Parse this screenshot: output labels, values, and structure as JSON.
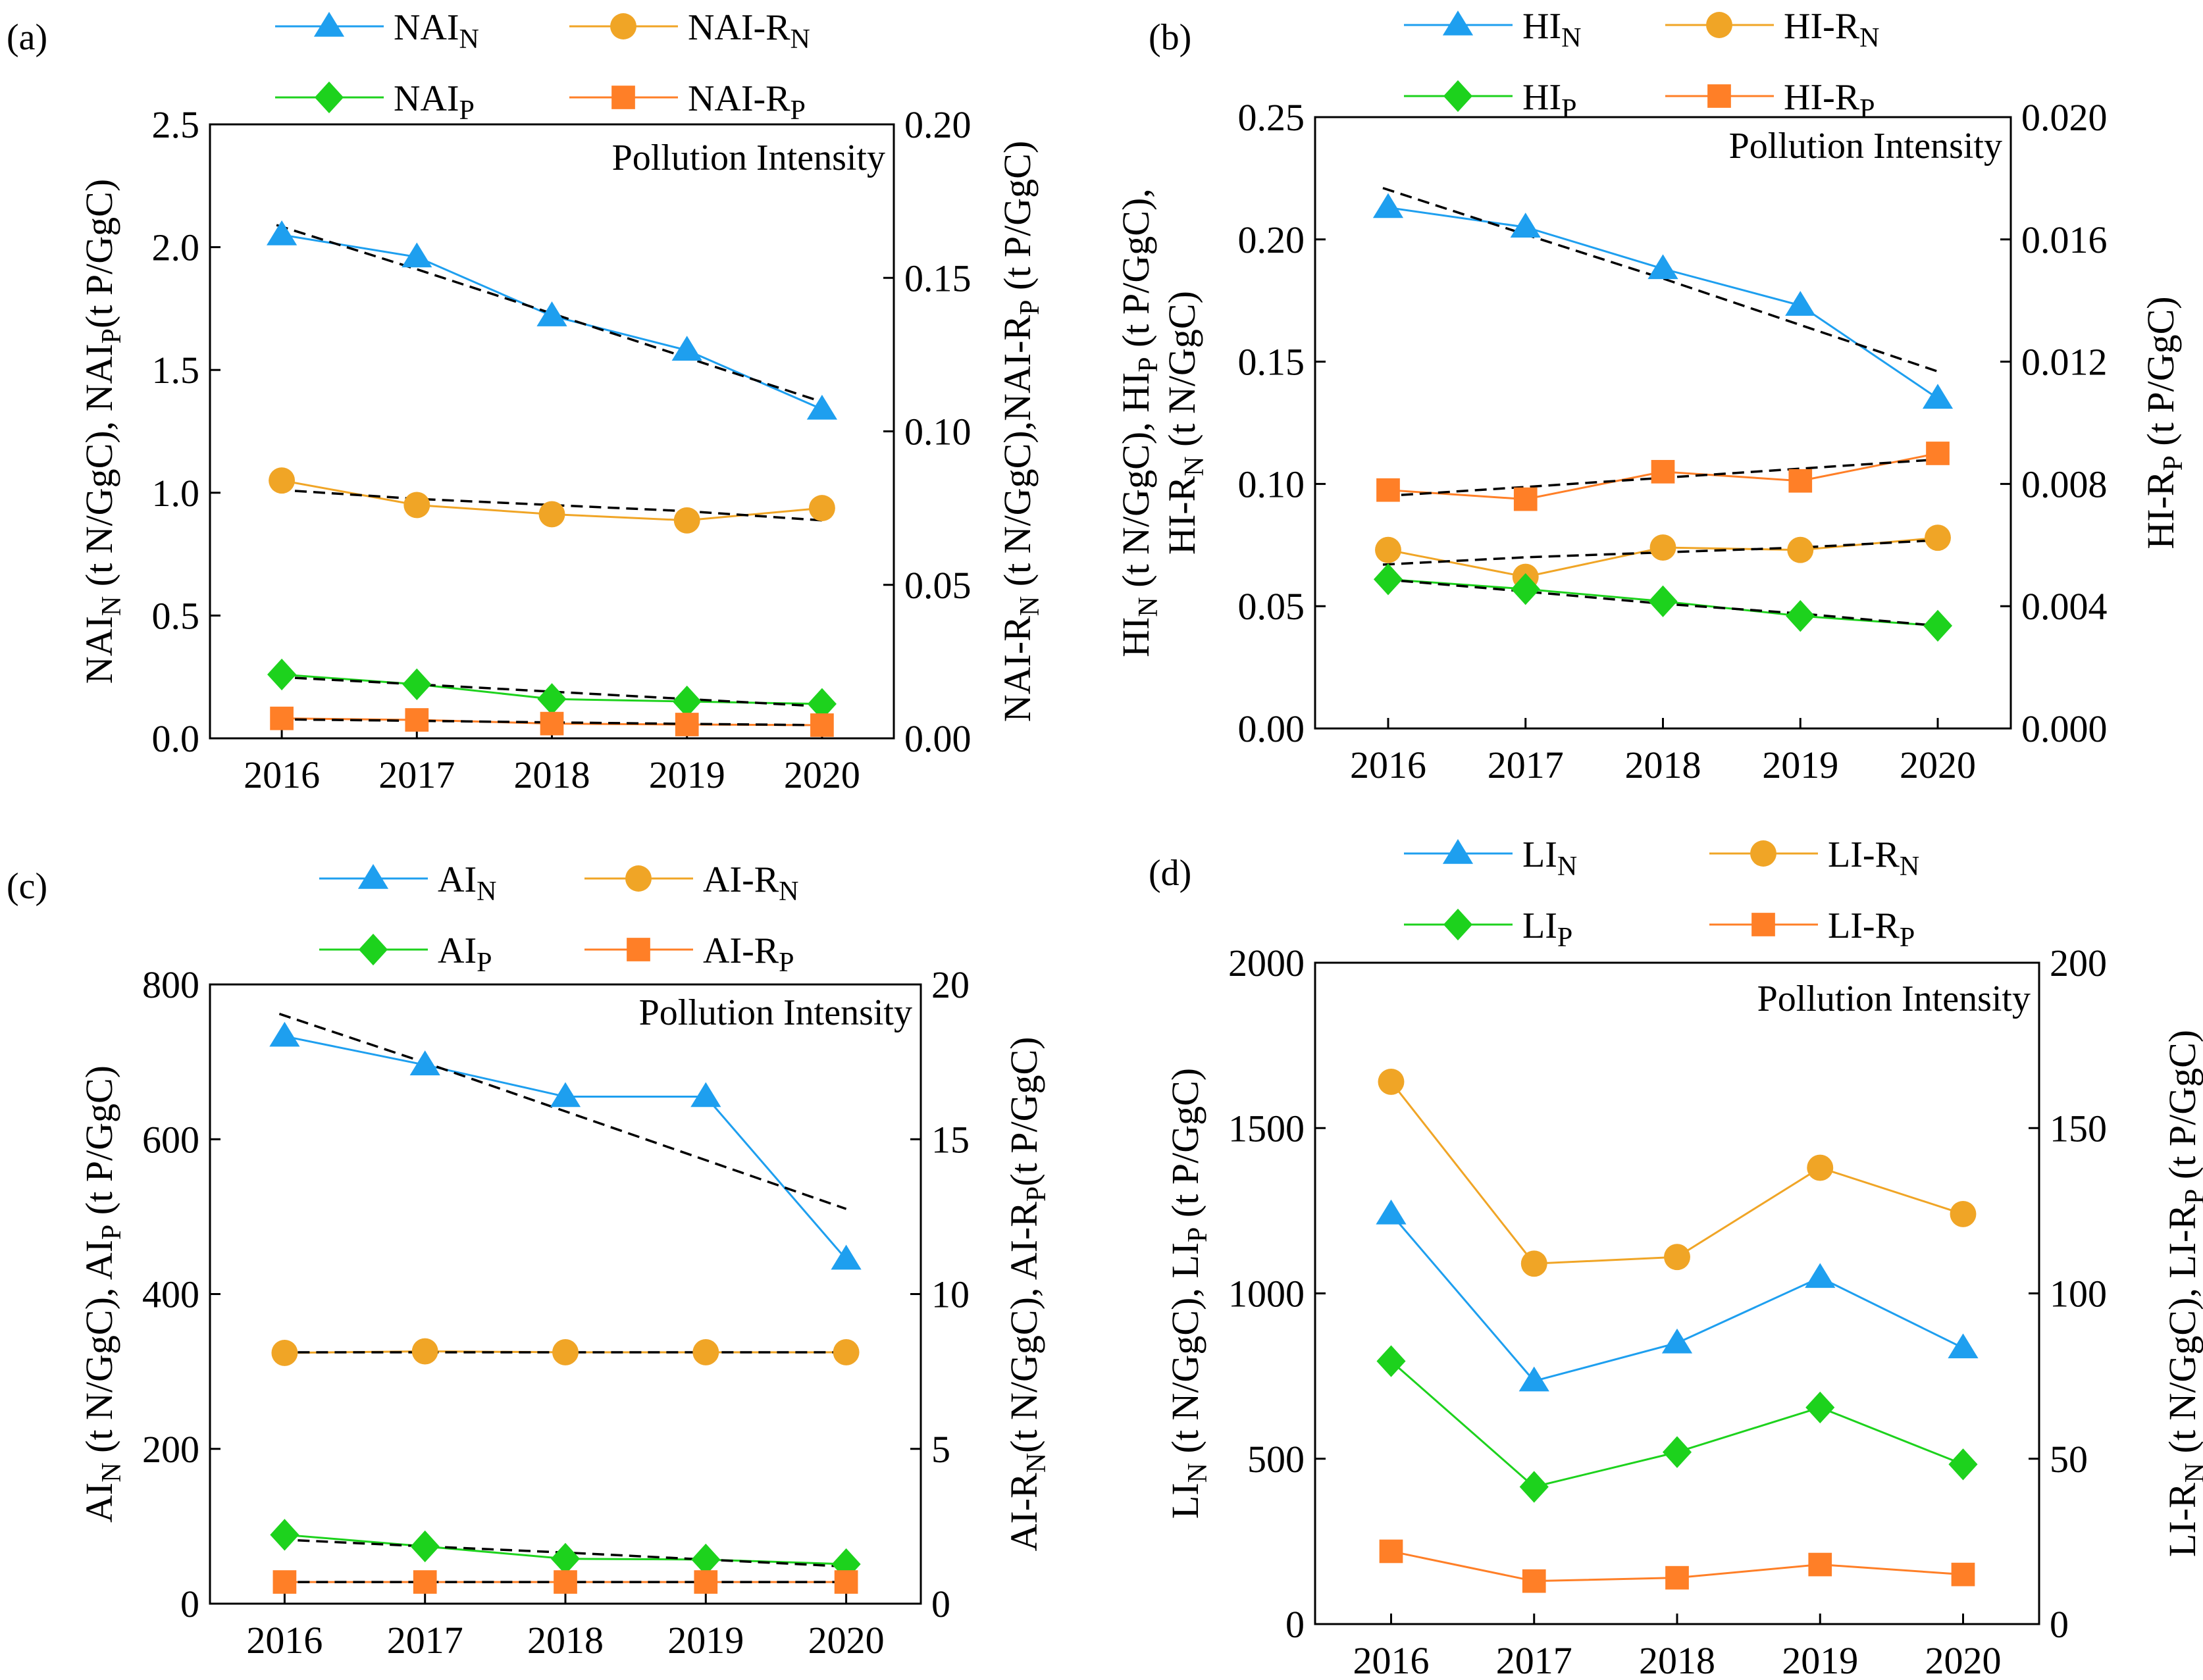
{
  "colors": {
    "blue": "#1E9FEF",
    "yellow": "#F0A526",
    "green": "#1DD21D",
    "orange": "#FF7F27",
    "trend": "#000000"
  },
  "chart_data": [
    {
      "panel": "(a)",
      "type": "line",
      "annotation": "Pollution Intensity",
      "categories": [
        "2016",
        "2017",
        "2018",
        "2019",
        "2020"
      ],
      "y_left": {
        "label": "NAI_N (t N/GgC), NAI_P(t P/GgC)",
        "ylim": [
          0,
          2.5
        ],
        "ticks": [
          "0.0",
          "0.5",
          "1.0",
          "1.5",
          "2.0",
          "2.5"
        ]
      },
      "y_right": {
        "label": "NAI-R_N (t N/GgC),NAI-R_P (t P/GgC)",
        "ylim": [
          0,
          0.2
        ],
        "ticks": [
          "0.00",
          "0.05",
          "0.10",
          "0.15",
          "0.20"
        ]
      },
      "series": [
        {
          "name": "NAI_N",
          "base": "NAI",
          "sub": "N",
          "axis": "left",
          "color": "blue",
          "marker": "triangle",
          "values": [
            2.05,
            1.96,
            1.72,
            1.58,
            1.34
          ],
          "trend": [
            2.09,
            1.91,
            1.73,
            1.55,
            1.37
          ]
        },
        {
          "name": "NAI-R_N",
          "base": "NAI-R",
          "sub": "N",
          "axis": "right",
          "color": "yellow",
          "marker": "circle",
          "values": [
            0.084,
            0.076,
            0.073,
            0.071,
            0.075
          ],
          "trend": [
            0.081,
            0.078,
            0.076,
            0.074,
            0.071
          ]
        },
        {
          "name": "NAI_P",
          "base": "NAI",
          "sub": "P",
          "axis": "left",
          "color": "green",
          "marker": "diamond",
          "values": [
            0.26,
            0.22,
            0.16,
            0.15,
            0.14
          ],
          "trend": [
            0.25,
            0.22,
            0.19,
            0.16,
            0.13
          ]
        },
        {
          "name": "NAI-R_P",
          "base": "NAI-R",
          "sub": "P",
          "axis": "right",
          "color": "orange",
          "marker": "square",
          "values": [
            0.0065,
            0.006,
            0.0048,
            0.0045,
            0.0043
          ],
          "trend": [
            0.0062,
            0.0057,
            0.0052,
            0.0047,
            0.0043
          ]
        }
      ]
    },
    {
      "panel": "(b)",
      "type": "line",
      "annotation": "Pollution Intensity",
      "categories": [
        "2016",
        "2017",
        "2018",
        "2019",
        "2020"
      ],
      "y_left": {
        "label": "HI_N (t N/GgC), HI_P (t P/GgC), HI-R_N (t N/GgC)",
        "ylim": [
          0,
          0.25
        ],
        "ticks": [
          "0.00",
          "0.05",
          "0.10",
          "0.15",
          "0.20",
          "0.25"
        ]
      },
      "y_right": {
        "label": "HI-R_P (t P/GgC)",
        "ylim": [
          0,
          0.02
        ],
        "ticks": [
          "0.000",
          "0.004",
          "0.008",
          "0.012",
          "0.016",
          "0.020"
        ]
      },
      "series": [
        {
          "name": "HI_N",
          "base": "HI",
          "sub": "N",
          "axis": "left",
          "color": "blue",
          "marker": "triangle",
          "values": [
            0.213,
            0.205,
            0.188,
            0.173,
            0.135
          ],
          "trend": [
            0.221,
            0.202,
            0.184,
            0.165,
            0.146
          ]
        },
        {
          "name": "HI-R_N",
          "base": "HI-R",
          "sub": "N",
          "axis": "left",
          "color": "yellow",
          "marker": "circle",
          "values": [
            0.073,
            0.062,
            0.074,
            0.073,
            0.078
          ],
          "trend": [
            0.067,
            0.07,
            0.072,
            0.074,
            0.077
          ]
        },
        {
          "name": "HI_P",
          "base": "HI",
          "sub": "P",
          "axis": "left",
          "color": "green",
          "marker": "diamond",
          "values": [
            0.061,
            0.057,
            0.052,
            0.046,
            0.042
          ],
          "trend": [
            0.061,
            0.056,
            0.051,
            0.047,
            0.042
          ]
        },
        {
          "name": "HI-R_P",
          "base": "HI-R",
          "sub": "P",
          "axis": "right",
          "color": "orange",
          "marker": "square",
          "values": [
            0.0078,
            0.0075,
            0.0084,
            0.0081,
            0.009
          ],
          "trend": [
            0.0076,
            0.0079,
            0.0082,
            0.0085,
            0.0088
          ]
        }
      ]
    },
    {
      "panel": "(c)",
      "type": "line",
      "annotation": "Pollution Intensity",
      "categories": [
        "2016",
        "2017",
        "2018",
        "2019",
        "2020"
      ],
      "y_left": {
        "label": "AI_N (t N/GgC), AI_P (t P/GgC)",
        "ylim": [
          0,
          800
        ],
        "ticks": [
          "0",
          "200",
          "400",
          "600",
          "800"
        ]
      },
      "y_right": {
        "label": "AI-R_N(t N/GgC), AI-R_P(t P/GgC)",
        "ylim": [
          0,
          20
        ],
        "ticks": [
          "0",
          "5",
          "10",
          "15",
          "20"
        ]
      },
      "series": [
        {
          "name": "AI_N",
          "base": "AI",
          "sub": "N",
          "axis": "left",
          "color": "blue",
          "marker": "triangle",
          "values": [
            733,
            696,
            655,
            655,
            445
          ],
          "trend": [
            762,
            699,
            636,
            573,
            510
          ]
        },
        {
          "name": "AI-R_N",
          "base": "AI-R",
          "sub": "N",
          "axis": "right",
          "color": "yellow",
          "marker": "circle",
          "values": [
            8.1,
            8.15,
            8.12,
            8.12,
            8.12
          ],
          "trend": [
            8.12,
            8.12,
            8.12,
            8.12,
            8.12
          ]
        },
        {
          "name": "AI_P",
          "base": "AI",
          "sub": "P",
          "axis": "left",
          "color": "green",
          "marker": "diamond",
          "values": [
            89,
            74,
            58,
            57,
            51
          ],
          "trend": [
            83,
            74,
            66,
            57,
            48
          ]
        },
        {
          "name": "AI-R_P",
          "base": "AI-R",
          "sub": "P",
          "axis": "right",
          "color": "orange",
          "marker": "square",
          "values": [
            0.7,
            0.7,
            0.7,
            0.7,
            0.7
          ],
          "trend": [
            0.7,
            0.7,
            0.7,
            0.7,
            0.7
          ]
        }
      ]
    },
    {
      "panel": "(d)",
      "type": "line",
      "annotation": "Pollution Intensity",
      "categories": [
        "2016",
        "2017",
        "2018",
        "2019",
        "2020"
      ],
      "y_left": {
        "label": "LI_N (t N/GgC), LI_P (t P/GgC)",
        "ylim": [
          0,
          2000
        ],
        "ticks": [
          "0",
          "500",
          "1000",
          "1500",
          "2000"
        ]
      },
      "y_right": {
        "label": "LI-R_N (t N/GgC), LI-R_P (t P/GgC)",
        "ylim": [
          0,
          200
        ],
        "ticks": [
          "0",
          "50",
          "100",
          "150",
          "200"
        ]
      },
      "series": [
        {
          "name": "LI_N",
          "base": "LI",
          "sub": "N",
          "axis": "left",
          "color": "blue",
          "marker": "triangle",
          "values": [
            1240,
            735,
            850,
            1048,
            835
          ],
          "trend": null
        },
        {
          "name": "LI-R_N",
          "base": "LI-R",
          "sub": "N",
          "axis": "right",
          "color": "yellow",
          "marker": "circle",
          "values": [
            164,
            109,
            111,
            138,
            124
          ],
          "trend": null
        },
        {
          "name": "LI_P",
          "base": "LI",
          "sub": "P",
          "axis": "left",
          "color": "green",
          "marker": "diamond",
          "values": [
            795,
            415,
            520,
            655,
            483
          ],
          "trend": null
        },
        {
          "name": "LI-R_P",
          "base": "LI-R",
          "sub": "P",
          "axis": "right",
          "color": "orange",
          "marker": "square",
          "values": [
            22,
            13,
            14,
            18,
            15
          ],
          "trend": null
        }
      ]
    }
  ]
}
